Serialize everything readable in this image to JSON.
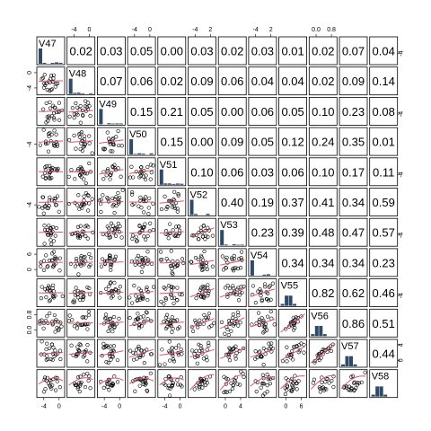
{
  "chart_data": {
    "type": "scatter-matrix",
    "variables": [
      "V47",
      "V48",
      "V49",
      "V50",
      "V51",
      "V52",
      "V53",
      "V54",
      "V55",
      "V56",
      "V57",
      "V58"
    ],
    "correlations_upper": [
      [
        "",
        "0.02",
        "0.03",
        "0.05",
        "0.00",
        "0.03",
        "0.02",
        "0.03",
        "0.01",
        "0.02",
        "0.07",
        "0.04"
      ],
      [
        "",
        "",
        "0.07",
        "0.06",
        "0.02",
        "0.09",
        "0.06",
        "0.04",
        "0.04",
        "0.02",
        "0.09",
        "0.14"
      ],
      [
        "",
        "",
        "",
        "0.15",
        "0.21",
        "0.05",
        "0.00",
        "0.06",
        "0.05",
        "0.10",
        "0.23",
        "0.08"
      ],
      [
        "",
        "",
        "",
        "",
        "0.15",
        "0.00",
        "0.09",
        "0.05",
        "0.12",
        "0.24",
        "0.35",
        "0.01"
      ],
      [
        "",
        "",
        "",
        "",
        "",
        "0.10",
        "0.06",
        "0.03",
        "0.06",
        "0.10",
        "0.17",
        "0.11"
      ],
      [
        "",
        "",
        "",
        "",
        "",
        "",
        "0.40",
        "0.19",
        "0.37",
        "0.41",
        "0.34",
        "0.59"
      ],
      [
        "",
        "",
        "",
        "",
        "",
        "",
        "",
        "0.23",
        "0.39",
        "0.48",
        "0.47",
        "0.57"
      ],
      [
        "",
        "",
        "",
        "",
        "",
        "",
        "",
        "",
        "0.34",
        "0.34",
        "0.34",
        "0.23"
      ],
      [
        "",
        "",
        "",
        "",
        "",
        "",
        "",
        "",
        "",
        "0.82",
        "0.62",
        "0.46"
      ],
      [
        "",
        "",
        "",
        "",
        "",
        "",
        "",
        "",
        "",
        "",
        "0.86",
        "0.51"
      ],
      [
        "",
        "",
        "",
        "",
        "",
        "",
        "",
        "",
        "",
        "",
        "",
        "0.44"
      ],
      [
        "",
        "",
        "",
        "",
        "",
        "",
        "",
        "",
        "",
        "",
        "",
        ""
      ]
    ],
    "top_axis_ticks": [
      [
        "-4",
        "0"
      ],
      [
        "-4",
        "0"
      ],
      [
        "-4",
        "2"
      ],
      [
        "-4",
        "2"
      ],
      [
        "0.0",
        "0.8"
      ]
    ],
    "bottom_axis_ticks": [
      [
        "-4",
        "0"
      ],
      [
        "-4",
        "0"
      ],
      [
        "-4",
        "0"
      ],
      [
        "0",
        "4"
      ],
      [
        "0",
        "6"
      ]
    ],
    "right_axis_ticks": [
      [
        "-4"
      ],
      [
        "-4"
      ],
      [
        "-4"
      ],
      [
        "-4"
      ],
      [
        "-4"
      ],
      [
        "0",
        "4"
      ],
      [
        "0",
        "6"
      ]
    ],
    "left_axis_ticks": [
      [
        "-4",
        "0"
      ],
      [
        "-4"
      ],
      [
        "-4"
      ],
      [
        "0",
        "6"
      ],
      [
        "0.0",
        "0.8"
      ]
    ],
    "smoother_color": "#DF536B",
    "histogram_color": "#2E4A6B"
  }
}
